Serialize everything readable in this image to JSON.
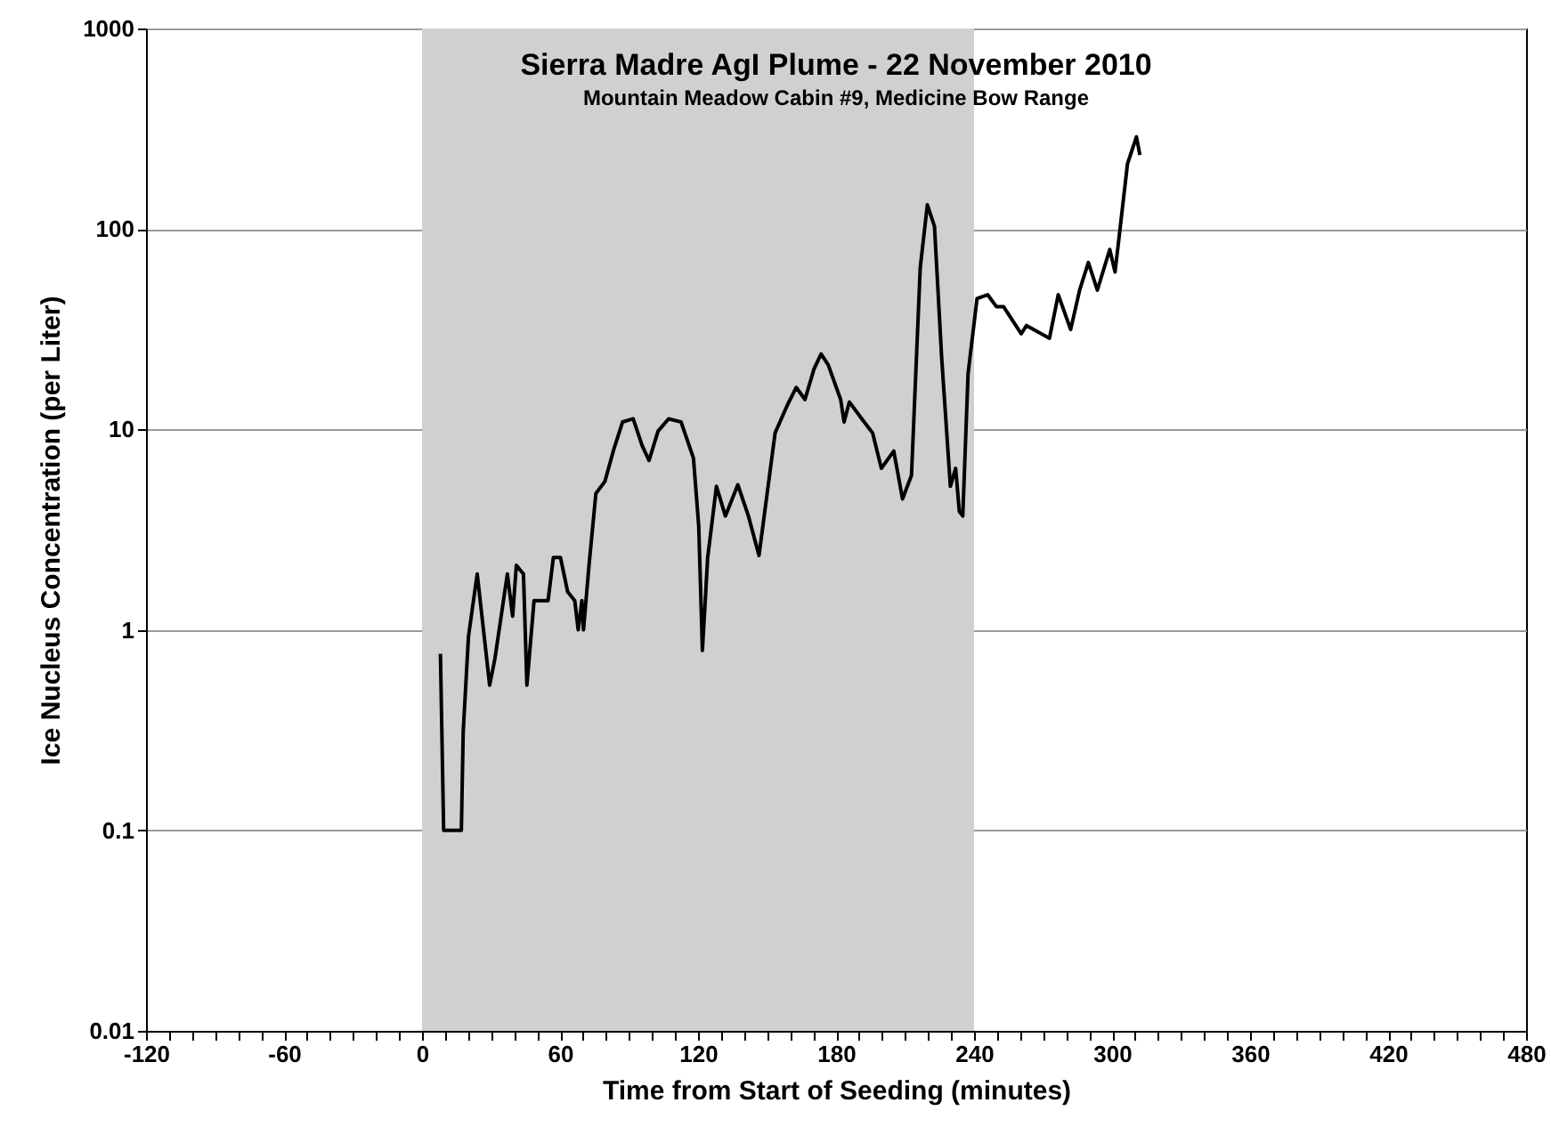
{
  "chart_data": {
    "type": "line",
    "title": "Sierra Madre AgI Plume - 22 November 2010",
    "subtitle": "Mountain Meadow Cabin #9, Medicine Bow Range",
    "xlabel": "Time from Start of Seeding (minutes)",
    "ylabel": "Ice Nucleus Concentration (per Liter)",
    "series": [
      {
        "color": "#000000",
        "x": [
          8,
          9.4,
          17.1,
          17.9,
          20.2,
          24,
          29.4,
          31.7,
          37.1,
          39.4,
          41,
          44.1,
          45.6,
          48.7,
          52.6,
          54.8,
          57.1,
          60.2,
          63.3,
          66.4,
          67.9,
          69.5,
          70.2,
          72.6,
          75.6,
          79.5,
          83.3,
          87.2,
          91.8,
          95.7,
          98.7,
          102.6,
          107.2,
          112.6,
          118,
          120.3,
          121.9,
          124.2,
          128,
          131.9,
          137.3,
          141.9,
          146.5,
          153.5,
          158.8,
          162.7,
          166.5,
          170.4,
          173.5,
          176.6,
          182,
          183.5,
          185.8,
          191.2,
          195.9,
          199.7,
          205.1,
          208.9,
          212.8,
          216.6,
          219.7,
          222.8,
          225.9,
          229.7,
          232,
          233.6,
          235.1,
          237.4,
          241.3,
          245.9,
          249.7,
          252.8,
          260.5,
          262.8,
          272.8,
          276.6,
          282,
          285.9,
          289.7,
          293.6,
          299,
          301.3,
          303.6,
          306.7,
          310.6,
          312.1
        ],
        "values": [
          0.76,
          0.1,
          0.1,
          0.31,
          0.93,
          1.9,
          0.53,
          0.72,
          1.9,
          1.17,
          2.1,
          1.9,
          0.53,
          1.4,
          1.4,
          1.4,
          2.3,
          2.3,
          1.55,
          1.4,
          1.0,
          1.4,
          1.0,
          2.1,
          4.8,
          5.5,
          7.9,
          10.9,
          11.3,
          8.3,
          7.0,
          9.8,
          11.3,
          10.9,
          7.2,
          3.3,
          0.79,
          2.3,
          5.2,
          3.7,
          5.3,
          3.7,
          2.35,
          9.6,
          13.2,
          16.2,
          14.1,
          20,
          23.8,
          21,
          14.1,
          10.9,
          13.7,
          11.3,
          9.6,
          6.4,
          7.8,
          4.5,
          5.9,
          64,
          132,
          103,
          23,
          5.2,
          6.4,
          3.9,
          3.7,
          19,
          45,
          47,
          41,
          41,
          30,
          33,
          28.5,
          47,
          31.5,
          49.5,
          68,
          49.5,
          79,
          61,
          103,
          211,
          288,
          234
        ]
      }
    ],
    "log": "y",
    "xlim": [
      -120,
      480
    ],
    "ylim": [
      0.01,
      1000
    ],
    "xticks": [
      -120,
      {
        "value": -110,
        "label": null
      },
      {
        "value": -100,
        "label": null
      },
      {
        "value": -90,
        "label": null
      },
      {
        "value": -80,
        "label": null
      },
      {
        "value": -70,
        "label": null
      },
      -60,
      {
        "value": -50,
        "label": null
      },
      {
        "value": -40,
        "label": null
      },
      {
        "value": -30,
        "label": null
      },
      {
        "value": -20,
        "label": null
      },
      {
        "value": -10,
        "label": null
      },
      0,
      {
        "value": 10,
        "label": null
      },
      {
        "value": 20,
        "label": null
      },
      {
        "value": 30,
        "label": null
      },
      {
        "value": 40,
        "label": null
      },
      {
        "value": 50,
        "label": null
      },
      60,
      {
        "value": 70,
        "label": null
      },
      {
        "value": 80,
        "label": null
      },
      {
        "value": 90,
        "label": null
      },
      {
        "value": 100,
        "label": null
      },
      {
        "value": 110,
        "label": null
      },
      120,
      {
        "value": 130,
        "label": null
      },
      {
        "value": 140,
        "label": null
      },
      {
        "value": 150,
        "label": null
      },
      {
        "value": 160,
        "label": null
      },
      {
        "value": 170,
        "label": null
      },
      180,
      {
        "value": 190,
        "label": null
      },
      {
        "value": 200,
        "label": null
      },
      {
        "value": 210,
        "label": null
      },
      {
        "value": 220,
        "label": null
      },
      {
        "value": 230,
        "label": null
      },
      240,
      {
        "value": 250,
        "label": null
      },
      {
        "value": 260,
        "label": null
      },
      {
        "value": 270,
        "label": null
      },
      {
        "value": 280,
        "label": null
      },
      {
        "value": 290,
        "label": null
      },
      300,
      {
        "value": 310,
        "label": null
      },
      {
        "value": 320,
        "label": null
      },
      {
        "value": 330,
        "label": null
      },
      {
        "value": 340,
        "label": null
      },
      {
        "value": 350,
        "label": null
      },
      360,
      {
        "value": 370,
        "label": null
      },
      {
        "value": 380,
        "label": null
      },
      {
        "value": 390,
        "label": null
      },
      {
        "value": 400,
        "label": null
      },
      {
        "value": 410,
        "label": null
      },
      420,
      {
        "value": 430,
        "label": null
      },
      {
        "value": 440,
        "label": null
      },
      {
        "value": 450,
        "label": null
      },
      {
        "value": 460,
        "label": null
      },
      {
        "value": 470,
        "label": null
      },
      480
    ],
    "yticks": [
      0.01,
      0.1,
      1,
      10,
      100,
      1000
    ],
    "grid": "y",
    "marker": "none",
    "line_style": "solid",
    "bands": [
      {
        "axis": "x",
        "from": 0,
        "to": 240,
        "color": "#d0d0d0"
      }
    ]
  }
}
